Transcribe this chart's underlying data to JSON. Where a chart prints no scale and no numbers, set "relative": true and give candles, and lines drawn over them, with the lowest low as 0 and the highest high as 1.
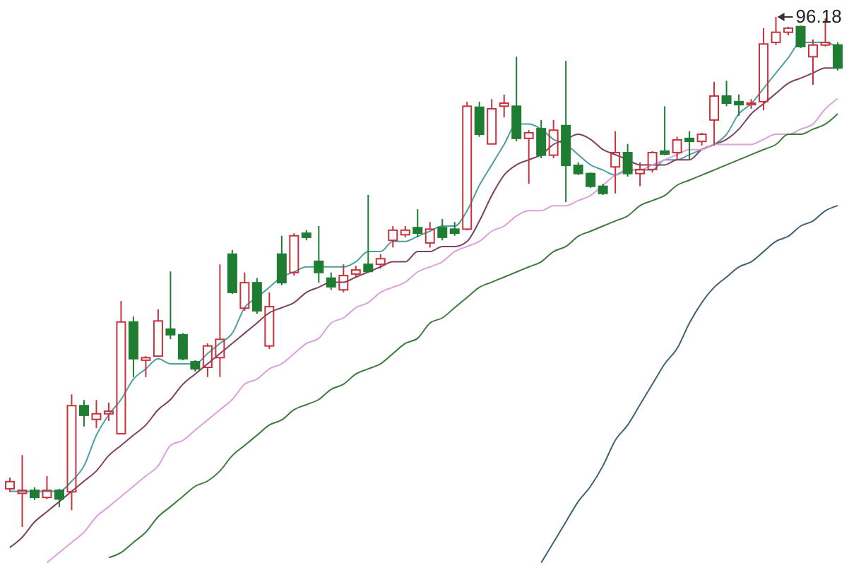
{
  "chart_data": {
    "type": "candlestick",
    "relative": true,
    "categories": [
      null,
      null,
      null,
      null,
      null,
      null,
      null,
      null,
      null,
      null,
      null,
      null,
      null,
      null,
      null,
      null,
      null,
      null,
      null,
      null,
      null,
      null,
      null,
      null,
      null,
      null,
      null,
      null,
      null,
      null,
      null,
      null,
      null,
      null,
      null,
      null,
      null,
      null,
      null,
      null,
      null,
      null,
      null,
      null,
      null,
      null,
      null,
      null,
      null,
      null,
      null,
      null,
      null,
      null,
      null,
      null,
      null,
      null,
      null,
      null,
      null,
      null,
      null,
      null,
      null,
      null,
      null,
      null
    ],
    "ohlc": [
      [
        0.075,
        0.097,
        0.069,
        0.089
      ],
      [
        0.066,
        0.141,
        0,
        0.072
      ],
      [
        0.072,
        0.078,
        0.053,
        0.058
      ],
      [
        0.058,
        0.1,
        0.055,
        0.072
      ],
      [
        0.072,
        0.075,
        0.039,
        0.055
      ],
      [
        0.069,
        0.26,
        0.033,
        0.238
      ],
      [
        0.238,
        0.249,
        0.197,
        0.219
      ],
      [
        0.211,
        0.249,
        0.194,
        0.222
      ],
      [
        0.222,
        0.244,
        0.208,
        0.227
      ],
      [
        0.183,
        0.443,
        0.183,
        0.402
      ],
      [
        0.402,
        0.413,
        0.294,
        0.33
      ],
      [
        0.327,
        0.335,
        0.294,
        0.332
      ],
      [
        0.335,
        0.427,
        0.335,
        0.404
      ],
      [
        0.388,
        0.501,
        0.368,
        0.377
      ],
      [
        0.377,
        0.38,
        0.327,
        0.33
      ],
      [
        0.324,
        0.327,
        0.305,
        0.31
      ],
      [
        0.313,
        0.36,
        0.294,
        0.355
      ],
      [
        0.332,
        0.515,
        0.294,
        0.368
      ],
      [
        0.535,
        0.543,
        0.457,
        0.46
      ],
      [
        0.429,
        0.499,
        0.424,
        0.479
      ],
      [
        0.479,
        0.488,
        0.418,
        0.424
      ],
      [
        0.355,
        0.46,
        0.349,
        0.432
      ],
      [
        0.535,
        0.571,
        0.474,
        0.479
      ],
      [
        0.499,
        0.576,
        0.493,
        0.571
      ],
      [
        0.576,
        0.582,
        0.562,
        0.568
      ],
      [
        0.521,
        0.59,
        0.479,
        0.499
      ],
      [
        0.488,
        0.499,
        0.465,
        0.471
      ],
      [
        0.465,
        0.515,
        0.46,
        0.493
      ],
      [
        0.496,
        0.512,
        0.49,
        0.504
      ],
      [
        0.515,
        0.651,
        0.499,
        0.501
      ],
      [
        0.515,
        0.535,
        0.507,
        0.526
      ],
      [
        0.562,
        0.59,
        0.548,
        0.582
      ],
      [
        0.573,
        0.59,
        0.568,
        0.582
      ],
      [
        0.587,
        0.623,
        0.568,
        0.576
      ],
      [
        0.557,
        0.598,
        0.548,
        0.584
      ],
      [
        0.587,
        0.604,
        0.562,
        0.568
      ],
      [
        0.584,
        0.598,
        0.571,
        0.576
      ],
      [
        0.584,
        0.834,
        0.582,
        0.825
      ],
      [
        0.823,
        0.834,
        0.765,
        0.77
      ],
      [
        0.751,
        0.839,
        0.751,
        0.82
      ],
      [
        0.825,
        0.848,
        0.803,
        0.831
      ],
      [
        0.825,
        0.922,
        0.756,
        0.762
      ],
      [
        0.762,
        0.778,
        0.673,
        0.773
      ],
      [
        0.781,
        0.798,
        0.723,
        0.729
      ],
      [
        0.729,
        0.798,
        0.723,
        0.778
      ],
      [
        0.787,
        0.914,
        0.637,
        0.709
      ],
      [
        0.709,
        0.715,
        0.69,
        0.693
      ],
      [
        0.693,
        0.695,
        0.665,
        0.668
      ],
      [
        0.668,
        0.673,
        0.651,
        0.654
      ],
      [
        0.706,
        0.776,
        0.654,
        0.734
      ],
      [
        0.734,
        0.751,
        0.687,
        0.693
      ],
      [
        0.693,
        0.715,
        0.668,
        0.701
      ],
      [
        0.701,
        0.737,
        0.695,
        0.734
      ],
      [
        0.737,
        0.825,
        0.729,
        0.731
      ],
      [
        0.734,
        0.765,
        0.72,
        0.759
      ],
      [
        0.762,
        0.776,
        0.72,
        0.756
      ],
      [
        0.756,
        0.773,
        0.748,
        0.77
      ],
      [
        0.798,
        0.873,
        0.748,
        0.845
      ],
      [
        0.845,
        0.875,
        0.825,
        0.831
      ],
      [
        0.834,
        0.848,
        0.806,
        0.828
      ],
      [
        0.828,
        0.839,
        0.82,
        0.831
      ],
      [
        0.834,
        0.978,
        0.817,
        0.947
      ],
      [
        0.95,
        1,
        0.945,
        0.97
      ],
      [
        0.97,
        0.981,
        0.964,
        0.978
      ],
      [
        0.981,
        0.983,
        0.939,
        0.942
      ],
      [
        0.922,
        0.956,
        0.867,
        0.945
      ],
      [
        0.945,
        0.997,
        0.942,
        0.95
      ],
      [
        0.945,
        0.95,
        0.895,
        0.9
      ]
    ],
    "series": [
      {
        "type": "line",
        "color": "#4f9ea0",
        "values": [
          0.07,
          0.07,
          0.07,
          0.07,
          0.07,
          0.09,
          0.12,
          0.18,
          0.22,
          0.25,
          0.29,
          0.31,
          0.33,
          0.32,
          0.32,
          0.32,
          0.34,
          0.36,
          0.38,
          0.43,
          0.45,
          0.47,
          0.49,
          0.5,
          0.51,
          0.51,
          0.51,
          0.51,
          0.52,
          0.54,
          0.54,
          0.56,
          0.56,
          0.57,
          0.58,
          0.59,
          0.59,
          0.62,
          0.67,
          0.71,
          0.75,
          0.79,
          0.79,
          0.78,
          0.76,
          0.75,
          0.73,
          0.71,
          0.7,
          0.69,
          0.7,
          0.7,
          0.7,
          0.72,
          0.72,
          0.73,
          0.74,
          0.75,
          0.77,
          0.81,
          0.83,
          0.86,
          0.89,
          0.92,
          0.95,
          0.95,
          0.95,
          0.94
        ]
      },
      {
        "type": "line",
        "color": "#7d3f62",
        "values": [
          -0.04,
          -0.02,
          0.01,
          0.03,
          0.05,
          0.07,
          0.09,
          0.11,
          0.14,
          0.16,
          0.18,
          0.2,
          0.23,
          0.25,
          0.28,
          0.3,
          0.32,
          0.34,
          0.36,
          0.38,
          0.4,
          0.42,
          0.43,
          0.44,
          0.46,
          0.47,
          0.48,
          0.48,
          0.49,
          0.5,
          0.51,
          0.52,
          0.52,
          0.54,
          0.54,
          0.55,
          0.55,
          0.56,
          0.6,
          0.65,
          0.69,
          0.71,
          0.72,
          0.73,
          0.75,
          0.76,
          0.77,
          0.76,
          0.74,
          0.73,
          0.72,
          0.71,
          0.71,
          0.71,
          0.72,
          0.72,
          0.74,
          0.75,
          0.76,
          0.78,
          0.81,
          0.83,
          0.85,
          0.87,
          0.88,
          0.89,
          0.9,
          0.9
        ]
      },
      {
        "type": "line",
        "color": "#dda0dd",
        "values": [
          null,
          null,
          null,
          -0.07,
          -0.05,
          -0.03,
          -0.01,
          0.02,
          0.04,
          0.06,
          0.08,
          0.1,
          0.12,
          0.16,
          0.17,
          0.19,
          0.21,
          0.23,
          0.25,
          0.28,
          0.29,
          0.31,
          0.32,
          0.34,
          0.36,
          0.37,
          0.4,
          0.41,
          0.43,
          0.44,
          0.46,
          0.47,
          0.48,
          0.5,
          0.51,
          0.52,
          0.54,
          0.55,
          0.56,
          0.58,
          0.59,
          0.61,
          0.62,
          0.62,
          0.63,
          0.63,
          0.64,
          0.65,
          0.67,
          0.69,
          0.7,
          0.7,
          0.71,
          0.72,
          0.73,
          0.74,
          0.74,
          0.75,
          0.75,
          0.75,
          0.75,
          0.76,
          0.77,
          0.77,
          0.78,
          0.79,
          0.82,
          0.84
        ]
      },
      {
        "type": "line",
        "color": "#3c7a3c",
        "values": [
          null,
          null,
          null,
          null,
          null,
          null,
          null,
          null,
          -0.06,
          -0.05,
          -0.03,
          -0.01,
          0.02,
          0.04,
          0.06,
          0.08,
          0.09,
          0.11,
          0.14,
          0.16,
          0.18,
          0.2,
          0.21,
          0.23,
          0.24,
          0.25,
          0.27,
          0.28,
          0.3,
          0.31,
          0.32,
          0.34,
          0.36,
          0.37,
          0.4,
          0.41,
          0.43,
          0.45,
          0.47,
          0.48,
          0.49,
          0.5,
          0.51,
          0.52,
          0.54,
          0.55,
          0.57,
          0.58,
          0.59,
          0.6,
          0.61,
          0.63,
          0.64,
          0.65,
          0.67,
          0.68,
          0.69,
          0.7,
          0.71,
          0.72,
          0.73,
          0.74,
          0.75,
          0.77,
          0.77,
          0.78,
          0.79,
          0.81
        ]
      },
      {
        "type": "line",
        "color": "#3f6272",
        "values": [
          null,
          null,
          null,
          null,
          null,
          null,
          null,
          null,
          null,
          null,
          null,
          null,
          null,
          null,
          null,
          null,
          null,
          null,
          null,
          null,
          null,
          null,
          null,
          null,
          null,
          null,
          null,
          null,
          null,
          null,
          null,
          null,
          null,
          null,
          null,
          null,
          null,
          null,
          null,
          null,
          null,
          null,
          null,
          -0.07,
          -0.03,
          0.01,
          0.05,
          0.08,
          0.12,
          0.17,
          0.2,
          0.24,
          0.28,
          0.32,
          0.35,
          0.4,
          0.44,
          0.47,
          0.49,
          0.51,
          0.52,
          0.54,
          0.56,
          0.57,
          0.59,
          0.6,
          0.62,
          0.63
        ]
      }
    ],
    "annotations": [
      {
        "text": "96.18",
        "y": 1
      }
    ]
  }
}
